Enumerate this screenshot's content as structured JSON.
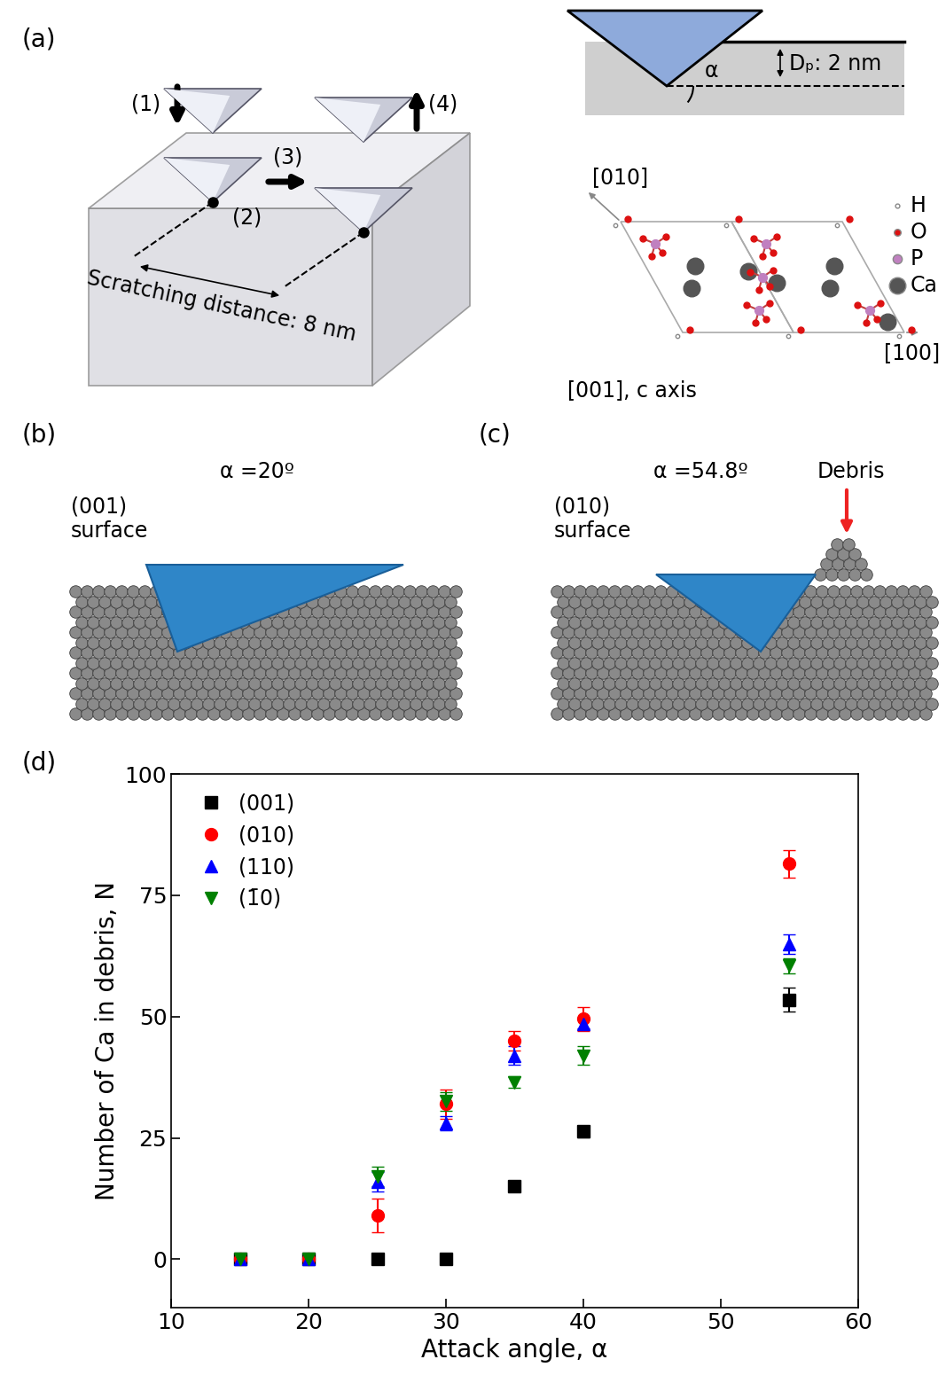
{
  "figure": {
    "panel_labels": [
      "(a)",
      "(b)",
      "(c)",
      "(d)"
    ]
  },
  "diagram": {
    "a": {
      "steps": [
        "(1)",
        "(2)",
        "(3)",
        "(4)"
      ],
      "distance": "Scratching distance: 8 nm",
      "angle": "α",
      "depth": "Dₚ: 2 nm",
      "crystal_axes": [
        "[010]",
        "[100]",
        "[001], c axis"
      ],
      "atoms": [
        "H",
        "O",
        "P",
        "Ca"
      ]
    },
    "b": {
      "angle": "α =20º",
      "surface": "(001)\nsurface"
    },
    "c": {
      "angle": "α =54.8º",
      "surface": "(010)\nsurface",
      "debris": "Debris"
    }
  },
  "chart_data": {
    "type": "scatter",
    "x_label": "Attack angle, α",
    "y_label": "Number of Ca in debris, N",
    "x": [
      15,
      20,
      25,
      30,
      35,
      40,
      55
    ],
    "xlim": [
      10,
      60
    ],
    "xticks": [
      10,
      20,
      30,
      40,
      50,
      60
    ],
    "ylim": [
      -10,
      100
    ],
    "yticks": [
      0,
      25,
      50,
      75,
      100
    ],
    "grid": false,
    "legend": "upper left",
    "series": [
      {
        "name": "(001)",
        "color": "#000000",
        "marker": "square",
        "values": [
          0,
          0,
          0,
          0,
          15,
          26.3,
          53.5
        ],
        "errors": [
          0,
          0,
          0,
          0,
          0.6,
          1.2,
          2.5
        ]
      },
      {
        "name": "(010)",
        "color": "#ff0000",
        "marker": "circle",
        "values": [
          0,
          0,
          9,
          32,
          45,
          49.5,
          81.5
        ],
        "errors": [
          0,
          0,
          3.5,
          3,
          2,
          2.5,
          2.8
        ]
      },
      {
        "name": "(110)",
        "color": "#0000ff",
        "marker": "triangle_up",
        "values": [
          0,
          0,
          16,
          28,
          42,
          48.5,
          65
        ],
        "errors": [
          0,
          0,
          2,
          1.5,
          2,
          1,
          2
        ]
      },
      {
        "name": "(1̄0)",
        "color": "#008000",
        "marker": "triangle_down",
        "values": [
          0,
          0,
          17,
          32.5,
          36.5,
          42,
          60.5
        ],
        "errors": [
          0,
          0,
          2,
          2,
          1.2,
          2,
          1.5
        ]
      }
    ]
  }
}
